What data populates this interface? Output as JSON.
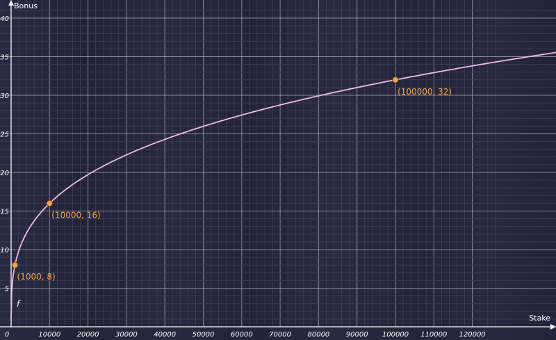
{
  "chart_data": {
    "type": "line",
    "title": "",
    "xlabel": "Stake",
    "ylabel": "Bonus",
    "xlim": [
      0,
      126000
    ],
    "ylim": [
      0,
      41
    ],
    "grid": true,
    "x_ticks": [
      0,
      10000,
      20000,
      30000,
      40000,
      50000,
      60000,
      70000,
      80000,
      90000,
      100000,
      110000,
      120000
    ],
    "y_ticks": [
      0,
      5,
      10,
      15,
      20,
      25,
      30,
      35,
      40
    ],
    "x_tick_labels": [
      "0",
      "10000",
      "20000",
      "30000",
      "40000",
      "50000",
      "60000",
      "70000",
      "80000",
      "90000",
      "100000",
      "110000",
      "120000"
    ],
    "y_tick_labels": [
      "0",
      "5",
      "10",
      "15",
      "20",
      "25",
      "30",
      "35",
      "40"
    ],
    "series": [
      {
        "name": "f",
        "color": "#f2b8f0",
        "x": [
          0,
          50,
          100,
          250,
          500,
          1000,
          2000,
          3000,
          5000,
          7500,
          10000,
          15000,
          20000,
          25000,
          30000,
          40000,
          50000,
          60000,
          70000,
          80000,
          90000,
          100000,
          110000,
          120000,
          126000
        ],
        "y": [
          0,
          2.95,
          3.71,
          5.04,
          6.35,
          8,
          10.08,
          11.54,
          13.68,
          15.66,
          16,
          18.31,
          20.16,
          21.71,
          23.08,
          25.39,
          27.36,
          29.09,
          30.66,
          32.0,
          33.3,
          32,
          33.03,
          34.03,
          34.6
        ]
      }
    ],
    "points": [
      {
        "x": 1000,
        "y": 8,
        "label": "(1000, 8)"
      },
      {
        "x": 10000,
        "y": 16,
        "label": "(10000, 16)"
      },
      {
        "x": 100000,
        "y": 32,
        "label": "(100000, 32)"
      }
    ],
    "curve_label": "f",
    "colors": {
      "background": "#25263b",
      "curve": "#f2b8f0",
      "points": "#f0a642",
      "point_labels": "#f3a94a",
      "grid": "#c9cad6"
    }
  }
}
